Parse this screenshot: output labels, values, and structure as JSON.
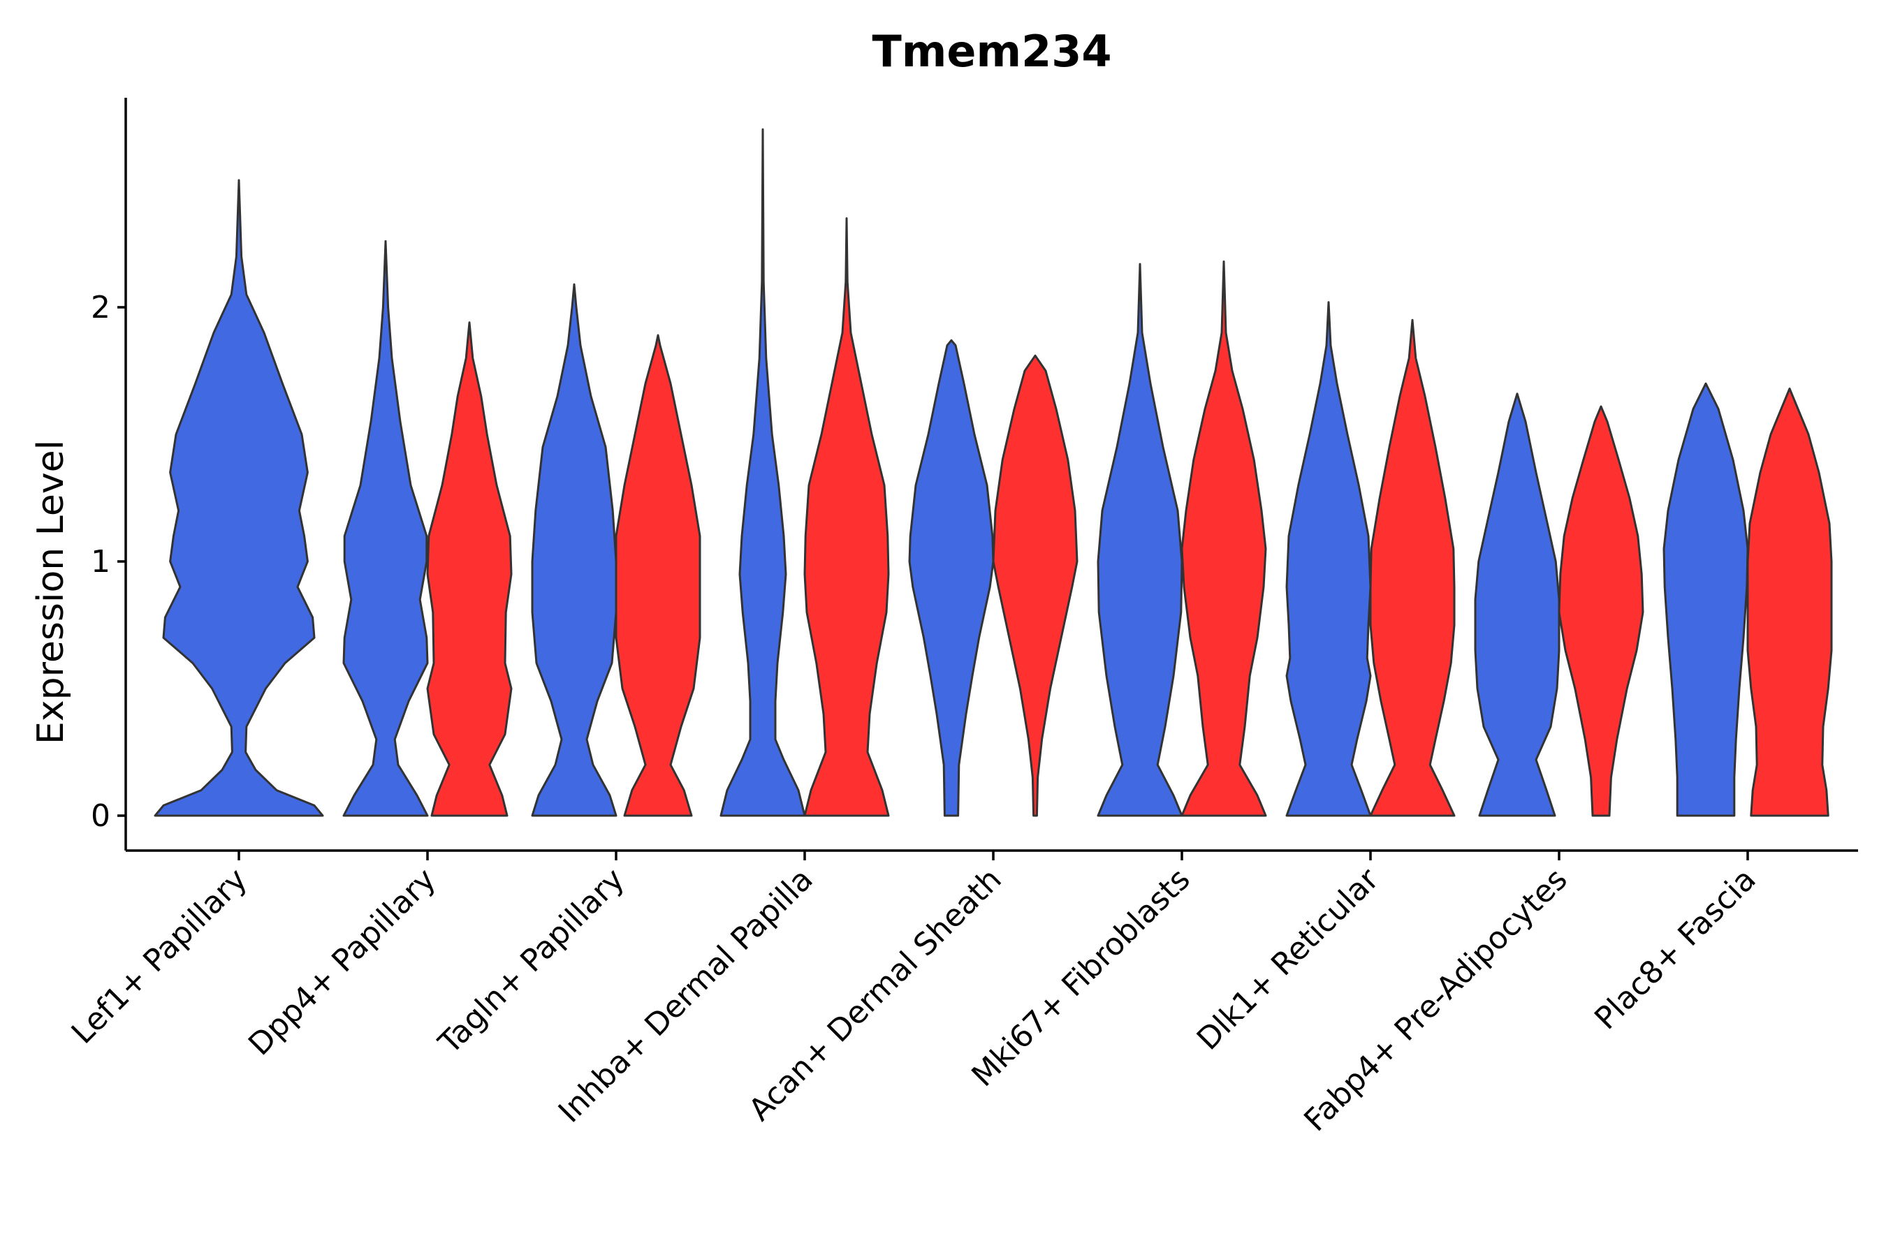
{
  "chart_data": {
    "type": "violin",
    "title": "Tmem234",
    "xlabel": "",
    "ylabel": "Expression Level",
    "ylim": [
      -0.14,
      2.83
    ],
    "yticks": [
      "0",
      "1",
      "2"
    ],
    "categories": [
      "Lef1+ Papillary",
      "Dpp4+ Papillary",
      "Tagln+ Papillary",
      "Inhba+ Dermal Papilla",
      "Acan+ Dermal Sheath",
      "Mki67+ Fibroblasts",
      "Dlk1+ Reticular",
      "Fabp4+ Pre-Adipocytes",
      "Plac8+ Fascia"
    ],
    "series_colors": {
      "A": "#4169E1",
      "B": "#FF3030"
    },
    "violins": [
      {
        "category": 0,
        "group": "A",
        "max": 2.5,
        "profile": [
          [
            0,
            1.0
          ],
          [
            0.04,
            0.9
          ],
          [
            0.1,
            0.45
          ],
          [
            0.18,
            0.2
          ],
          [
            0.25,
            0.08
          ],
          [
            0.35,
            0.09
          ],
          [
            0.5,
            0.32
          ],
          [
            0.6,
            0.55
          ],
          [
            0.7,
            0.9
          ],
          [
            0.78,
            0.88
          ],
          [
            0.9,
            0.7
          ],
          [
            1.0,
            0.82
          ],
          [
            1.1,
            0.78
          ],
          [
            1.2,
            0.72
          ],
          [
            1.35,
            0.82
          ],
          [
            1.5,
            0.75
          ],
          [
            1.7,
            0.52
          ],
          [
            1.9,
            0.3
          ],
          [
            2.05,
            0.09
          ],
          [
            2.2,
            0.03
          ],
          [
            2.5,
            0.0
          ]
        ]
      },
      {
        "category": 1,
        "group": "A",
        "max": 2.26,
        "profile": [
          [
            0,
            1.0
          ],
          [
            0.08,
            0.75
          ],
          [
            0.2,
            0.3
          ],
          [
            0.3,
            0.22
          ],
          [
            0.45,
            0.55
          ],
          [
            0.6,
            1.0
          ],
          [
            0.7,
            0.98
          ],
          [
            0.85,
            0.82
          ],
          [
            1.0,
            0.98
          ],
          [
            1.1,
            0.98
          ],
          [
            1.3,
            0.6
          ],
          [
            1.55,
            0.35
          ],
          [
            1.8,
            0.15
          ],
          [
            2.0,
            0.06
          ],
          [
            2.26,
            0.0
          ]
        ]
      },
      {
        "category": 1,
        "group": "B",
        "max": 1.94,
        "profile": [
          [
            0,
            0.9
          ],
          [
            0.08,
            0.78
          ],
          [
            0.2,
            0.48
          ],
          [
            0.32,
            0.85
          ],
          [
            0.5,
            1.0
          ],
          [
            0.6,
            0.85
          ],
          [
            0.8,
            0.87
          ],
          [
            0.95,
            1.0
          ],
          [
            1.1,
            0.97
          ],
          [
            1.3,
            0.65
          ],
          [
            1.5,
            0.42
          ],
          [
            1.65,
            0.28
          ],
          [
            1.8,
            0.08
          ],
          [
            1.94,
            0.0
          ]
        ]
      },
      {
        "category": 2,
        "group": "A",
        "max": 2.09,
        "profile": [
          [
            0,
            1.0
          ],
          [
            0.08,
            0.85
          ],
          [
            0.2,
            0.45
          ],
          [
            0.3,
            0.3
          ],
          [
            0.45,
            0.55
          ],
          [
            0.6,
            0.9
          ],
          [
            0.8,
            1.0
          ],
          [
            1.0,
            1.0
          ],
          [
            1.2,
            0.92
          ],
          [
            1.45,
            0.75
          ],
          [
            1.65,
            0.4
          ],
          [
            1.85,
            0.15
          ],
          [
            2.0,
            0.05
          ],
          [
            2.09,
            0.0
          ]
        ]
      },
      {
        "category": 2,
        "group": "B",
        "max": 1.89,
        "profile": [
          [
            0,
            0.8
          ],
          [
            0.1,
            0.62
          ],
          [
            0.2,
            0.3
          ],
          [
            0.35,
            0.55
          ],
          [
            0.5,
            0.85
          ],
          [
            0.7,
            1.0
          ],
          [
            0.9,
            1.0
          ],
          [
            1.1,
            1.0
          ],
          [
            1.3,
            0.8
          ],
          [
            1.5,
            0.55
          ],
          [
            1.7,
            0.3
          ],
          [
            1.85,
            0.05
          ],
          [
            1.89,
            0.0
          ]
        ]
      },
      {
        "category": 3,
        "group": "A",
        "max": 2.7,
        "profile": [
          [
            0,
            1.0
          ],
          [
            0.1,
            0.85
          ],
          [
            0.22,
            0.5
          ],
          [
            0.3,
            0.3
          ],
          [
            0.45,
            0.3
          ],
          [
            0.6,
            0.35
          ],
          [
            0.8,
            0.48
          ],
          [
            0.95,
            0.55
          ],
          [
            1.1,
            0.5
          ],
          [
            1.3,
            0.38
          ],
          [
            1.5,
            0.22
          ],
          [
            1.8,
            0.08
          ],
          [
            2.1,
            0.02
          ],
          [
            2.7,
            0.0
          ]
        ]
      },
      {
        "category": 3,
        "group": "B",
        "max": 2.35,
        "profile": [
          [
            0,
            1.0
          ],
          [
            0.1,
            0.85
          ],
          [
            0.25,
            0.5
          ],
          [
            0.4,
            0.55
          ],
          [
            0.6,
            0.72
          ],
          [
            0.8,
            0.95
          ],
          [
            0.95,
            1.0
          ],
          [
            1.1,
            0.98
          ],
          [
            1.3,
            0.9
          ],
          [
            1.5,
            0.6
          ],
          [
            1.7,
            0.35
          ],
          [
            1.9,
            0.1
          ],
          [
            2.1,
            0.02
          ],
          [
            2.35,
            0.0
          ]
        ]
      },
      {
        "category": 4,
        "group": "A",
        "max": 1.87,
        "profile": [
          [
            0,
            0.16
          ],
          [
            0.2,
            0.18
          ],
          [
            0.4,
            0.35
          ],
          [
            0.55,
            0.5
          ],
          [
            0.7,
            0.66
          ],
          [
            0.9,
            0.92
          ],
          [
            1.0,
            1.0
          ],
          [
            1.1,
            0.98
          ],
          [
            1.3,
            0.85
          ],
          [
            1.5,
            0.55
          ],
          [
            1.7,
            0.3
          ],
          [
            1.85,
            0.1
          ],
          [
            1.87,
            0.0
          ]
        ]
      },
      {
        "category": 4,
        "group": "B",
        "max": 1.81,
        "profile": [
          [
            0,
            0.04
          ],
          [
            0.15,
            0.06
          ],
          [
            0.3,
            0.16
          ],
          [
            0.5,
            0.36
          ],
          [
            0.7,
            0.62
          ],
          [
            0.9,
            0.88
          ],
          [
            1.0,
            1.0
          ],
          [
            1.2,
            0.95
          ],
          [
            1.4,
            0.78
          ],
          [
            1.6,
            0.5
          ],
          [
            1.75,
            0.25
          ],
          [
            1.81,
            0.0
          ]
        ]
      },
      {
        "category": 5,
        "group": "A",
        "max": 2.17,
        "profile": [
          [
            0,
            1.0
          ],
          [
            0.08,
            0.8
          ],
          [
            0.2,
            0.42
          ],
          [
            0.35,
            0.6
          ],
          [
            0.55,
            0.8
          ],
          [
            0.8,
            0.98
          ],
          [
            1.0,
            1.0
          ],
          [
            1.2,
            0.9
          ],
          [
            1.45,
            0.55
          ],
          [
            1.7,
            0.25
          ],
          [
            1.9,
            0.05
          ],
          [
            2.17,
            0.0
          ]
        ]
      },
      {
        "category": 5,
        "group": "B",
        "max": 2.18,
        "profile": [
          [
            0,
            1.0
          ],
          [
            0.08,
            0.8
          ],
          [
            0.2,
            0.38
          ],
          [
            0.35,
            0.5
          ],
          [
            0.55,
            0.62
          ],
          [
            0.7,
            0.8
          ],
          [
            0.9,
            0.95
          ],
          [
            1.05,
            1.0
          ],
          [
            1.2,
            0.9
          ],
          [
            1.4,
            0.72
          ],
          [
            1.6,
            0.45
          ],
          [
            1.75,
            0.2
          ],
          [
            1.9,
            0.05
          ],
          [
            2.18,
            0.0
          ]
        ]
      },
      {
        "category": 6,
        "group": "A",
        "max": 2.02,
        "profile": [
          [
            0,
            1.0
          ],
          [
            0.1,
            0.78
          ],
          [
            0.2,
            0.55
          ],
          [
            0.3,
            0.68
          ],
          [
            0.45,
            0.9
          ],
          [
            0.55,
            1.0
          ],
          [
            0.62,
            0.92
          ],
          [
            0.75,
            0.95
          ],
          [
            0.9,
            1.0
          ],
          [
            1.1,
            0.95
          ],
          [
            1.3,
            0.72
          ],
          [
            1.5,
            0.45
          ],
          [
            1.7,
            0.2
          ],
          [
            1.85,
            0.05
          ],
          [
            2.02,
            0.0
          ]
        ]
      },
      {
        "category": 6,
        "group": "B",
        "max": 1.95,
        "profile": [
          [
            0,
            1.0
          ],
          [
            0.1,
            0.72
          ],
          [
            0.2,
            0.42
          ],
          [
            0.3,
            0.55
          ],
          [
            0.45,
            0.75
          ],
          [
            0.6,
            0.92
          ],
          [
            0.75,
            1.0
          ],
          [
            0.9,
            1.0
          ],
          [
            1.05,
            0.98
          ],
          [
            1.25,
            0.78
          ],
          [
            1.45,
            0.55
          ],
          [
            1.65,
            0.3
          ],
          [
            1.8,
            0.08
          ],
          [
            1.95,
            0.0
          ]
        ]
      },
      {
        "category": 7,
        "group": "A",
        "max": 1.66,
        "profile": [
          [
            0,
            0.9
          ],
          [
            0.1,
            0.7
          ],
          [
            0.22,
            0.45
          ],
          [
            0.35,
            0.8
          ],
          [
            0.5,
            0.95
          ],
          [
            0.65,
            1.0
          ],
          [
            0.85,
            1.0
          ],
          [
            1.0,
            0.92
          ],
          [
            1.15,
            0.72
          ],
          [
            1.35,
            0.45
          ],
          [
            1.55,
            0.2
          ],
          [
            1.66,
            0.0
          ]
        ]
      },
      {
        "category": 7,
        "group": "B",
        "max": 1.61,
        "profile": [
          [
            0,
            0.2
          ],
          [
            0.15,
            0.24
          ],
          [
            0.3,
            0.38
          ],
          [
            0.5,
            0.62
          ],
          [
            0.65,
            0.85
          ],
          [
            0.8,
            1.0
          ],
          [
            0.95,
            0.97
          ],
          [
            1.1,
            0.88
          ],
          [
            1.25,
            0.68
          ],
          [
            1.4,
            0.42
          ],
          [
            1.55,
            0.15
          ],
          [
            1.61,
            0.0
          ]
        ]
      },
      {
        "category": 8,
        "group": "A",
        "max": 1.7,
        "profile": [
          [
            0,
            0.68
          ],
          [
            0.15,
            0.68
          ],
          [
            0.3,
            0.72
          ],
          [
            0.5,
            0.8
          ],
          [
            0.7,
            0.9
          ],
          [
            0.9,
            0.98
          ],
          [
            1.05,
            1.0
          ],
          [
            1.2,
            0.9
          ],
          [
            1.4,
            0.65
          ],
          [
            1.6,
            0.3
          ],
          [
            1.7,
            0.0
          ]
        ]
      },
      {
        "category": 8,
        "group": "B",
        "max": 1.68,
        "profile": [
          [
            0,
            0.92
          ],
          [
            0.1,
            0.88
          ],
          [
            0.2,
            0.78
          ],
          [
            0.35,
            0.8
          ],
          [
            0.5,
            0.92
          ],
          [
            0.65,
            1.0
          ],
          [
            0.8,
            1.0
          ],
          [
            1.0,
            1.0
          ],
          [
            1.15,
            0.95
          ],
          [
            1.35,
            0.7
          ],
          [
            1.5,
            0.45
          ],
          [
            1.68,
            0.0
          ]
        ]
      }
    ]
  }
}
